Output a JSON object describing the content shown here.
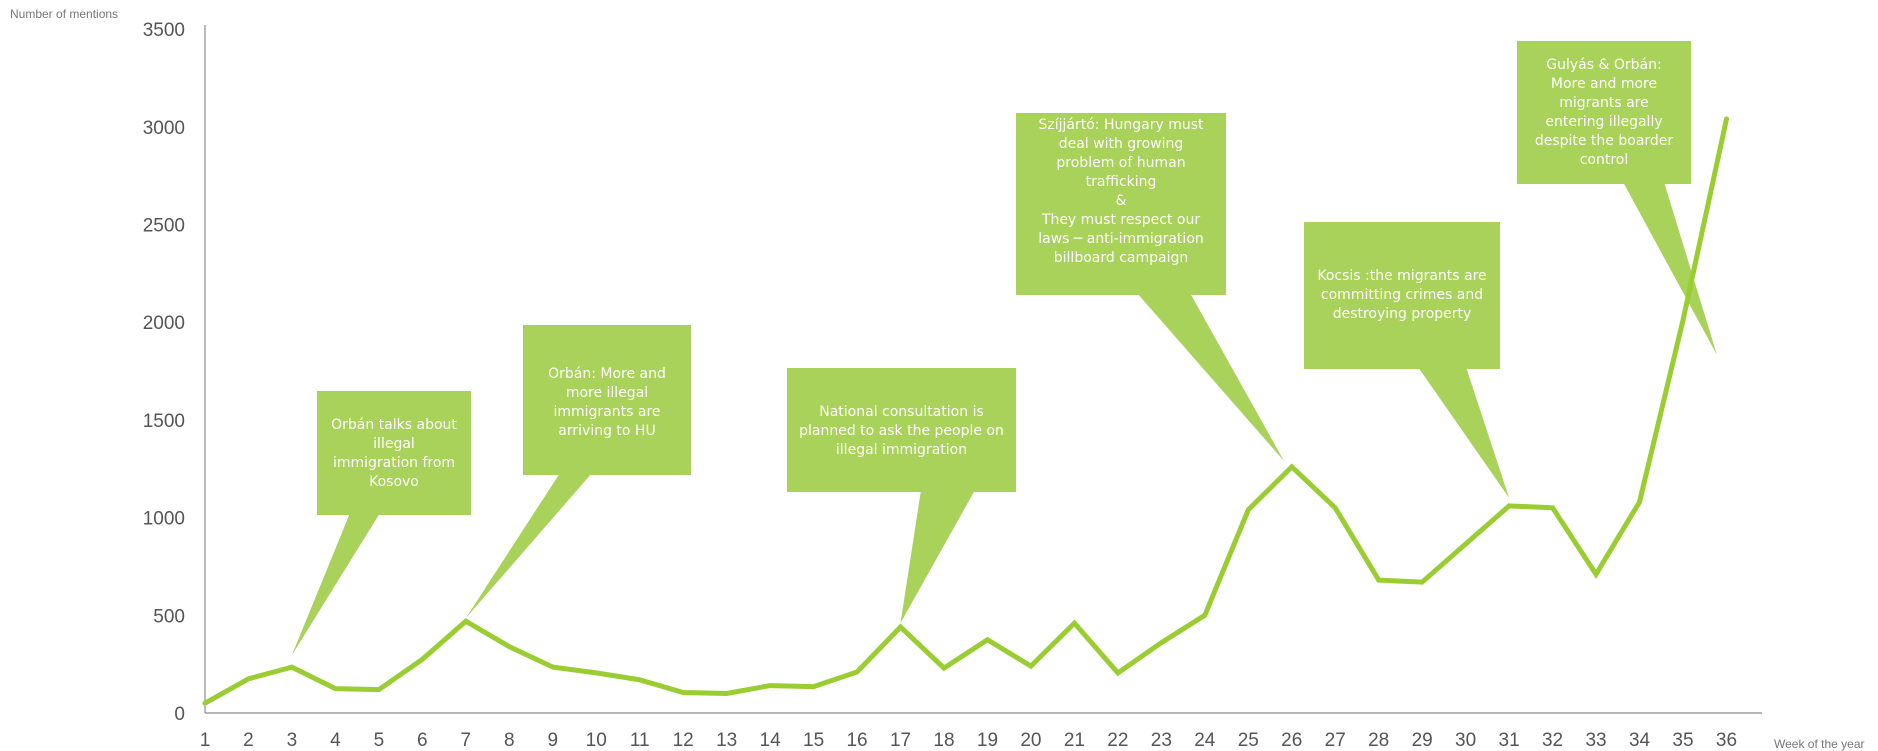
{
  "colors": {
    "line": "#9ACD32",
    "callout": "#A8D25A",
    "axis": "#8c8c8c",
    "text": "#555555"
  },
  "chart_data": {
    "type": "line",
    "title": "",
    "xlabel": "Week of the year",
    "ylabel": "Number of mentions",
    "ylim": [
      0,
      3500
    ],
    "yticks": [
      0,
      500,
      1000,
      1500,
      2000,
      2500,
      3000,
      3500
    ],
    "grid": false,
    "x": [
      1,
      2,
      3,
      4,
      5,
      6,
      7,
      8,
      9,
      10,
      11,
      12,
      13,
      14,
      15,
      16,
      17,
      18,
      19,
      20,
      21,
      22,
      23,
      24,
      25,
      26,
      27,
      28,
      29,
      30,
      31,
      32,
      33,
      34,
      35,
      36
    ],
    "values": [
      50,
      175,
      235,
      125,
      120,
      275,
      470,
      340,
      235,
      205,
      170,
      105,
      100,
      140,
      135,
      210,
      440,
      230,
      375,
      240,
      460,
      205,
      360,
      500,
      1040,
      1260,
      1050,
      680,
      670,
      865,
      1060,
      1050,
      710,
      1080,
      2010,
      3040
    ],
    "annotations": [
      {
        "x": 3,
        "lines": [
          "Orbán talks about",
          "illegal",
          "immigration from",
          "Kosovo"
        ]
      },
      {
        "x": 7,
        "lines": [
          "Orbán: More and",
          "more illegal",
          "immigrants are",
          "arriving to HU"
        ]
      },
      {
        "x": 17,
        "lines": [
          "National consultation is",
          "planned to ask the people on",
          "illegal immigration"
        ]
      },
      {
        "x": 25,
        "lines": [
          "Szíjjártó: Hungary must",
          "deal with  growing",
          "problem of human",
          "trafficking",
          "&",
          "They must respect our",
          "laws ─ anti-immigration",
          "billboard campaign"
        ]
      },
      {
        "x": 31,
        "lines": [
          "Kocsis :the migrants are",
          "committing crimes and",
          "destroying property"
        ]
      },
      {
        "x": 35,
        "lines": [
          "Gulyás & Orbán:",
          "More and more",
          "migrants are",
          "entering illegally",
          "despite the boarder",
          "control"
        ]
      }
    ]
  }
}
